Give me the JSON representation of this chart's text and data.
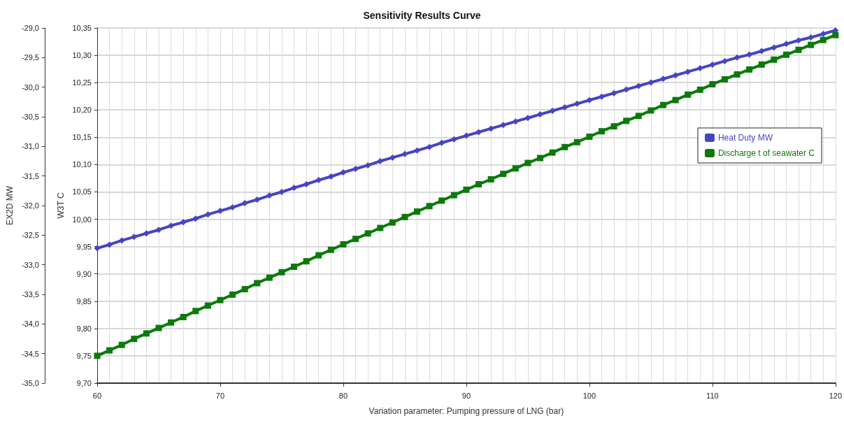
{
  "chart_data": {
    "type": "line",
    "title": "Sensitivity Results Curve",
    "xlabel": "Variation parameter: Pumping pressure of LNG (bar)",
    "ylabel": "EX2D MW",
    "y2label": "W3T C",
    "x": [
      60,
      61,
      62,
      63,
      64,
      65,
      66,
      67,
      68,
      69,
      70,
      71,
      72,
      73,
      74,
      75,
      76,
      77,
      78,
      79,
      80,
      81,
      82,
      83,
      84,
      85,
      86,
      87,
      88,
      89,
      90,
      91,
      92,
      93,
      94,
      95,
      96,
      97,
      98,
      99,
      100,
      101,
      102,
      103,
      104,
      105,
      106,
      107,
      108,
      109,
      110,
      111,
      112,
      113,
      114,
      115,
      116,
      117,
      118,
      119,
      120
    ],
    "series": [
      {
        "name": "Heat Duty MW",
        "color": "#4545c4",
        "marker": "diamond",
        "values": [
          -32.72,
          -32.66,
          -32.59,
          -32.53,
          -32.47,
          -32.41,
          -32.34,
          -32.28,
          -32.22,
          -32.15,
          -32.09,
          -32.03,
          -31.96,
          -31.9,
          -31.83,
          -31.77,
          -31.7,
          -31.64,
          -31.57,
          -31.51,
          -31.44,
          -31.38,
          -31.32,
          -31.25,
          -31.19,
          -31.13,
          -31.07,
          -31.01,
          -30.94,
          -30.88,
          -30.82,
          -30.76,
          -30.7,
          -30.64,
          -30.58,
          -30.52,
          -30.46,
          -30.4,
          -30.34,
          -30.28,
          -30.22,
          -30.16,
          -30.1,
          -30.04,
          -29.98,
          -29.92,
          -29.86,
          -29.8,
          -29.74,
          -29.68,
          -29.62,
          -29.56,
          -29.5,
          -29.45,
          -29.39,
          -29.33,
          -29.27,
          -29.21,
          -29.16,
          -29.1,
          -29.04
        ]
      },
      {
        "name": "Discharge t of seawater C",
        "color": "#0b7a0b",
        "marker": "square",
        "axis": "y2",
        "values": [
          9.75,
          9.76,
          9.77,
          9.781,
          9.791,
          9.801,
          9.811,
          9.821,
          9.832,
          9.842,
          9.852,
          9.862,
          9.872,
          9.883,
          9.893,
          9.903,
          9.913,
          9.923,
          9.934,
          9.944,
          9.954,
          9.964,
          9.974,
          9.984,
          9.994,
          10.004,
          10.014,
          10.024,
          10.034,
          10.044,
          10.054,
          10.064,
          10.073,
          10.083,
          10.093,
          10.103,
          10.112,
          10.122,
          10.132,
          10.141,
          10.151,
          10.161,
          10.17,
          10.18,
          10.189,
          10.199,
          10.209,
          10.218,
          10.228,
          10.237,
          10.247,
          10.256,
          10.265,
          10.274,
          10.283,
          10.292,
          10.301,
          10.31,
          10.319,
          10.328,
          10.337
        ]
      }
    ],
    "xlim": [
      60,
      120
    ],
    "xticks": [
      60,
      70,
      80,
      90,
      100,
      110,
      120
    ],
    "ylim": [
      -35,
      -29
    ],
    "yticks": [
      {
        "value": -35,
        "label": "-35,0"
      },
      {
        "value": -34.5,
        "label": "-34,5"
      },
      {
        "value": -34,
        "label": "-34,0"
      },
      {
        "value": -33.5,
        "label": "-33,5"
      },
      {
        "value": -33,
        "label": "-33,0"
      },
      {
        "value": -32.5,
        "label": "-32,5"
      },
      {
        "value": -32,
        "label": "-32,0"
      },
      {
        "value": -31.5,
        "label": "-31,5"
      },
      {
        "value": -31,
        "label": "-31,0"
      },
      {
        "value": -30.5,
        "label": "-30,5"
      },
      {
        "value": -30,
        "label": "-30,0"
      },
      {
        "value": -29.5,
        "label": "-29,5"
      },
      {
        "value": -29,
        "label": "-29,0"
      }
    ],
    "y2lim": [
      9.7,
      10.35
    ],
    "y2ticks": [
      {
        "value": 9.7,
        "label": "9,70"
      },
      {
        "value": 9.75,
        "label": "9,75"
      },
      {
        "value": 9.8,
        "label": "9,80"
      },
      {
        "value": 9.85,
        "label": "9,85"
      },
      {
        "value": 9.9,
        "label": "9,90"
      },
      {
        "value": 9.95,
        "label": "9,95"
      },
      {
        "value": 10,
        "label": "10,00"
      },
      {
        "value": 10.05,
        "label": "10,05"
      },
      {
        "value": 10.1,
        "label": "10,10"
      },
      {
        "value": 10.15,
        "label": "10,15"
      },
      {
        "value": 10.2,
        "label": "10,20"
      },
      {
        "value": 10.25,
        "label": "10,25"
      },
      {
        "value": 10.3,
        "label": "10,30"
      },
      {
        "value": 10.35,
        "label": "10,35"
      }
    ],
    "grid": true,
    "legend": "right",
    "line_style": "solid"
  }
}
